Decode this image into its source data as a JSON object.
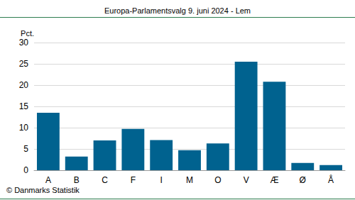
{
  "chart_data": {
    "type": "bar",
    "title": "Europa-Parlamentsvalg 9. juni 2024 - Lem",
    "y_label": "Pct.",
    "annotation": "© Danmarks Statistik",
    "categories": [
      "A",
      "B",
      "C",
      "F",
      "I",
      "M",
      "O",
      "V",
      "Æ",
      "Ø",
      "Å"
    ],
    "values": [
      13.5,
      3.2,
      7.0,
      9.7,
      7.1,
      4.7,
      6.3,
      25.5,
      20.8,
      1.7,
      1.2
    ],
    "color": "#00628f",
    "ylim": [
      0,
      30
    ],
    "yticks": [
      0,
      5,
      10,
      15,
      20,
      25,
      30
    ],
    "grid": true
  }
}
